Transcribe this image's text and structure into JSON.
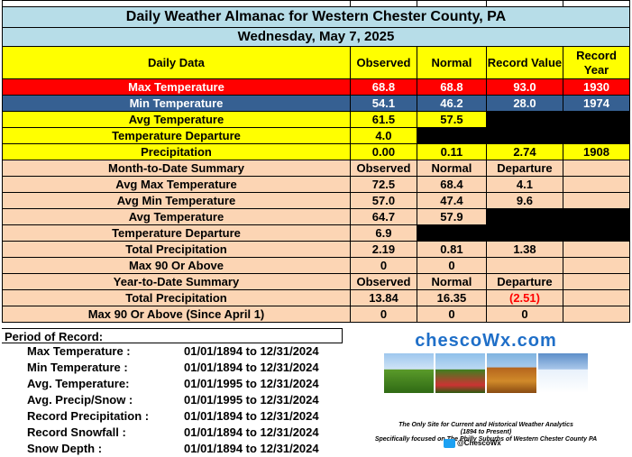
{
  "title": "Daily Weather Almanac for Western Chester County, PA",
  "date": "Wednesday, May 7, 2025",
  "daily": {
    "header": {
      "label": "Daily Data",
      "observed": "Observed",
      "normal": "Normal",
      "record_value": "Record Value",
      "record_year": "Record Year"
    },
    "max_temp": {
      "label": "Max Temperature",
      "observed": "68.8",
      "normal": "68.8",
      "record_value": "93.0",
      "record_year": "1930"
    },
    "min_temp": {
      "label": "Min Temperature",
      "observed": "54.1",
      "normal": "46.2",
      "record_value": "28.0",
      "record_year": "1974"
    },
    "avg_temp": {
      "label": "Avg Temperature",
      "observed": "61.5",
      "normal": "57.5"
    },
    "temp_departure": {
      "label": "Temperature Departure",
      "observed": "4.0"
    },
    "precip": {
      "label": "Precipitation",
      "observed": "0.00",
      "normal": "0.11",
      "record_value": "2.74",
      "record_year": "1908"
    }
  },
  "mtd": {
    "header": {
      "label": "Month-to-Date Summary",
      "observed": "Observed",
      "normal": "Normal",
      "departure": "Departure"
    },
    "rows": [
      {
        "label": "Avg Max Temperature",
        "observed": "72.5",
        "normal": "68.4",
        "departure": "4.1"
      },
      {
        "label": "Avg Min Temperature",
        "observed": "57.0",
        "normal": "47.4",
        "departure": "9.6"
      },
      {
        "label": "Avg Temperature",
        "observed": "64.7",
        "normal": "57.9"
      },
      {
        "label": "Temperature Departure",
        "observed": "6.9"
      },
      {
        "label": "Total Precipitation",
        "observed": "2.19",
        "normal": "0.81",
        "departure": "1.38"
      },
      {
        "label": "Max 90 Or Above",
        "observed": "0",
        "normal": "0",
        "departure": ""
      }
    ]
  },
  "ytd": {
    "header": {
      "label": "Year-to-Date Summary",
      "observed": "Observed",
      "normal": "Normal",
      "departure": "Departure"
    },
    "rows": [
      {
        "label": "Total Precipitation",
        "observed": "13.84",
        "normal": "16.35",
        "departure": "(2.51)"
      },
      {
        "label": "Max 90 Or Above (Since April 1)",
        "observed": "0",
        "normal": "0",
        "departure": "0"
      }
    ]
  },
  "period_of_record": {
    "title": "Period of Record:",
    "items": [
      {
        "label": "Max Temperature :",
        "range": "01/01/1894 to 12/31/2024"
      },
      {
        "label": "Min Temperature :",
        "range": "01/01/1894 to 12/31/2024"
      },
      {
        "label": "Avg. Temperature:",
        "range": "01/01/1995 to 12/31/2024"
      },
      {
        "label": "Avg. Precip/Snow :",
        "range": "01/01/1995 to 12/31/2024"
      },
      {
        "label": "Record Precipitation :",
        "range": "01/01/1894 to 12/31/2024"
      },
      {
        "label": "Record Snowfall :",
        "range": "01/01/1894 to 12/31/2024"
      },
      {
        "label": "Snow Depth :",
        "range": "01/01/1894 to 12/31/2024"
      }
    ]
  },
  "logo": {
    "brand": "chescoWx.com",
    "tagline1": "The Only Site for Current and Historical Weather Analytics",
    "tagline2": "(1894 to Present)",
    "tagline3": "Specifically focused on The Philly Suburbs of Western Chester County PA",
    "twitter": "@ChescoWx",
    "colors": {
      "brand": "#1f6fc8",
      "twitter": "#1da1f2"
    }
  },
  "colors": {
    "title_bg": "#b7dde8",
    "yellow": "#ffff00",
    "peach": "#fcd5b4",
    "max_row": "#ff0000",
    "min_row": "#366092"
  }
}
